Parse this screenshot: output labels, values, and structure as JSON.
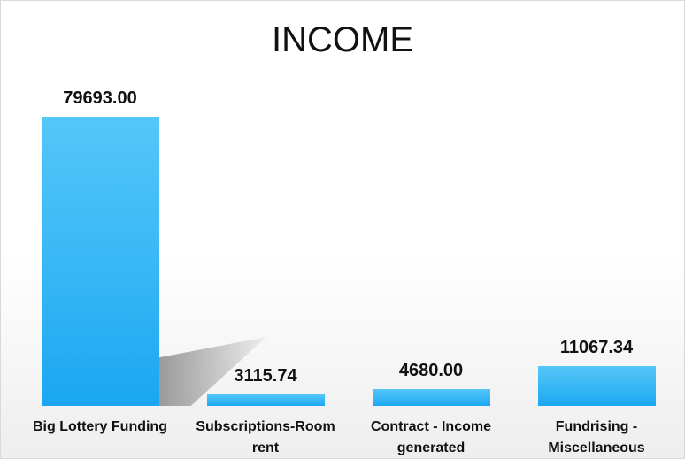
{
  "chart_data": {
    "type": "bar",
    "title": "INCOME",
    "categories": [
      "Big Lottery Funding",
      "Subscriptions-Room rent",
      "Contract - Income generated",
      "Fundrising - Miscellaneous"
    ],
    "values": [
      79693,
      3115.74,
      4680,
      11067.34
    ],
    "value_labels": [
      "79693.00",
      "3115.74",
      "4680.00",
      "11067.34"
    ],
    "color": "#33b5f5"
  }
}
